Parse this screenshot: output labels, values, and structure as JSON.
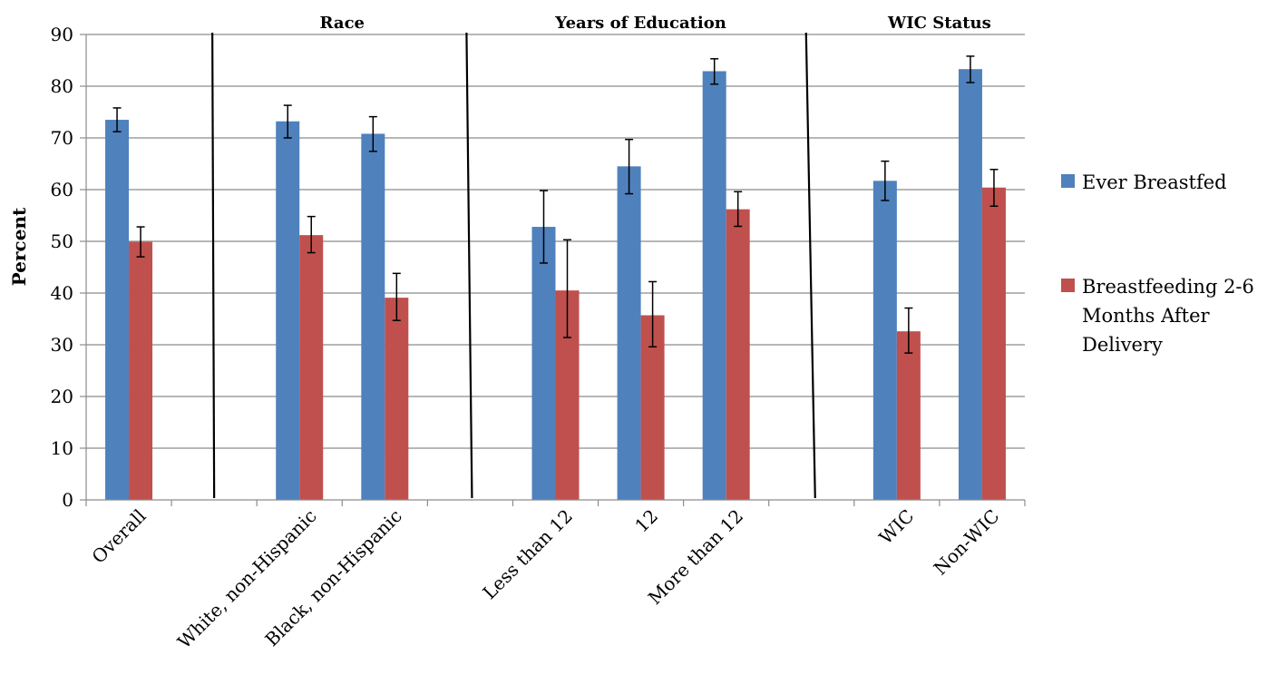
{
  "chart_data": {
    "type": "bar",
    "ylabel": "Percent",
    "ylim": [
      0,
      90
    ],
    "yticks": [
      0,
      10,
      20,
      30,
      40,
      50,
      60,
      70,
      80,
      90
    ],
    "grid": true,
    "legend_position": "right",
    "group_headers": [
      "Race",
      "Years of Education",
      "WIC Status"
    ],
    "categories": [
      "Overall",
      "",
      "White, non-Hispanic",
      "Black, non-Hispanic",
      "",
      "Less than 12",
      "12",
      "More than 12",
      "",
      "WIC",
      "Non-WIC"
    ],
    "series": [
      {
        "name": "Ever Breastfed",
        "color": "#4F81BD",
        "values": [
          73.5,
          null,
          73.2,
          70.8,
          null,
          52.8,
          64.5,
          82.9,
          null,
          61.7,
          83.3
        ],
        "error_low": [
          71.2,
          null,
          70.0,
          67.4,
          null,
          45.8,
          59.2,
          80.4,
          null,
          57.9,
          80.7
        ],
        "error_high": [
          75.8,
          null,
          76.3,
          74.1,
          null,
          59.8,
          69.7,
          85.3,
          null,
          65.5,
          85.8
        ]
      },
      {
        "name": "Breastfeeding 2-6 Months After Delivery",
        "legend_lines": [
          "Breastfeeding 2-6",
          "Months After",
          "Delivery"
        ],
        "color": "#C0504D",
        "values": [
          49.9,
          null,
          51.2,
          39.1,
          null,
          40.5,
          35.7,
          56.2,
          null,
          32.6,
          60.4
        ],
        "error_low": [
          47.0,
          null,
          47.8,
          34.7,
          null,
          31.4,
          29.6,
          52.9,
          null,
          28.4,
          56.8
        ],
        "error_high": [
          52.8,
          null,
          54.8,
          43.8,
          null,
          50.3,
          42.2,
          59.6,
          null,
          37.1,
          63.9
        ]
      }
    ]
  }
}
